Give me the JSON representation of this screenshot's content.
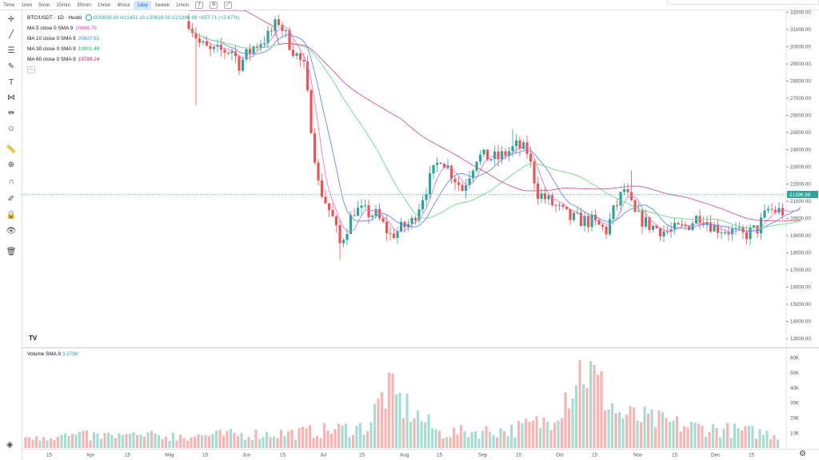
{
  "toolbar": {
    "timeframes": [
      "Time",
      "1min",
      "5min",
      "15min",
      "30min",
      "1hour",
      "4hour",
      "1day",
      "1week",
      "1mon"
    ],
    "active": "1day"
  },
  "left_tools": [
    "crosshair-icon",
    "trend-line-icon",
    "horizontal-lines-icon",
    "brush-icon",
    "text-icon",
    "pattern-icon",
    "measure-icon",
    "emoji-icon",
    "ruler-icon",
    "zoom-in-icon",
    "magnet-icon",
    "lock-drawing-icon",
    "lock-icon",
    "eye-icon",
    "trash-icon"
  ],
  "legend": {
    "symbol": "BTC/USDT · 1D · Huobi",
    "ohlc": "O20839.30 H21451.10 L20618.50 C21396.99 +557.71 (+2.67%)",
    "ma": [
      {
        "label": "MA 5 close 0 SMA 9",
        "value": "20666.76",
        "color": "#e040c0"
      },
      {
        "label": "MA 10 close 0 SMA 9",
        "value": "20637.81",
        "color": "#2196f3"
      },
      {
        "label": "MA 30 close 0 SMA 9",
        "value": "19801.48",
        "color": "#00c853"
      },
      {
        "label": "MA 60 close 0 SMA 9",
        "value": "19789.24",
        "color": "#c2185b"
      }
    ]
  },
  "volume_legend": {
    "label": "Volume SMA 9",
    "value": "3.279K"
  },
  "last_price": "21396.99",
  "colors": {
    "up": "#26a69a",
    "down": "#ef5350",
    "up_vol": "#a8dcd2",
    "down_vol": "#f6b4b2"
  },
  "chart_data": {
    "type": "candlestick",
    "price_axis": {
      "min": 13000,
      "max": 32000,
      "ticks": [
        "32000.00",
        "31000.00",
        "30000.00",
        "29000.00",
        "28000.00",
        "27000.00",
        "26000.00",
        "25000.00",
        "24000.00",
        "23000.00",
        "22000.00",
        "21000.00",
        "20000.00",
        "19000.00",
        "18000.00",
        "17000.00",
        "16000.00",
        "15000.00",
        "14000.00",
        "13000.00"
      ]
    },
    "volume_axis": {
      "ticks": [
        "60K",
        "50K",
        "40K",
        "30K",
        "20K",
        "10K"
      ]
    },
    "time_axis": [
      "15",
      "Apr",
      "15",
      "May",
      "15",
      "Jun",
      "15",
      "Jul",
      "15",
      "Aug",
      "15",
      "Sep",
      "15",
      "Oct",
      "15",
      "Nov",
      "15",
      "Dec",
      "15"
    ],
    "waypoints": [
      [
        0,
        31500
      ],
      [
        3,
        30200
      ],
      [
        6,
        29700
      ],
      [
        12,
        29800
      ],
      [
        14,
        29000
      ],
      [
        18,
        30000
      ],
      [
        22,
        30600
      ],
      [
        25,
        31500
      ],
      [
        28,
        30200
      ],
      [
        32,
        28800
      ],
      [
        36,
        22000
      ],
      [
        40,
        20000
      ],
      [
        42,
        18500
      ],
      [
        46,
        20500
      ],
      [
        52,
        20200
      ],
      [
        56,
        19000
      ],
      [
        62,
        19800
      ],
      [
        66,
        21800
      ],
      [
        70,
        23600
      ],
      [
        76,
        21700
      ],
      [
        80,
        23600
      ],
      [
        86,
        23500
      ],
      [
        91,
        24200
      ],
      [
        94,
        23900
      ],
      [
        97,
        21500
      ],
      [
        100,
        21000
      ],
      [
        106,
        20000
      ],
      [
        112,
        19800
      ],
      [
        116,
        19300
      ],
      [
        118,
        20400
      ],
      [
        121,
        21700
      ],
      [
        124,
        20200
      ],
      [
        128,
        19600
      ],
      [
        133,
        19200
      ],
      [
        138,
        19500
      ],
      [
        142,
        20200
      ],
      [
        146,
        19500
      ],
      [
        150,
        19300
      ],
      [
        154,
        19000
      ],
      [
        158,
        19400
      ],
      [
        161,
        20500
      ],
      [
        165,
        20400
      ],
      [
        167,
        20100
      ],
      [
        170,
        21400
      ]
    ],
    "volume_profile": [
      [
        0,
        8
      ],
      [
        30,
        10
      ],
      [
        50,
        14
      ],
      [
        55,
        38
      ],
      [
        70,
        10
      ],
      [
        90,
        12
      ],
      [
        100,
        18
      ],
      [
        110,
        55
      ],
      [
        120,
        22
      ],
      [
        140,
        14
      ],
      [
        170,
        8
      ]
    ]
  }
}
